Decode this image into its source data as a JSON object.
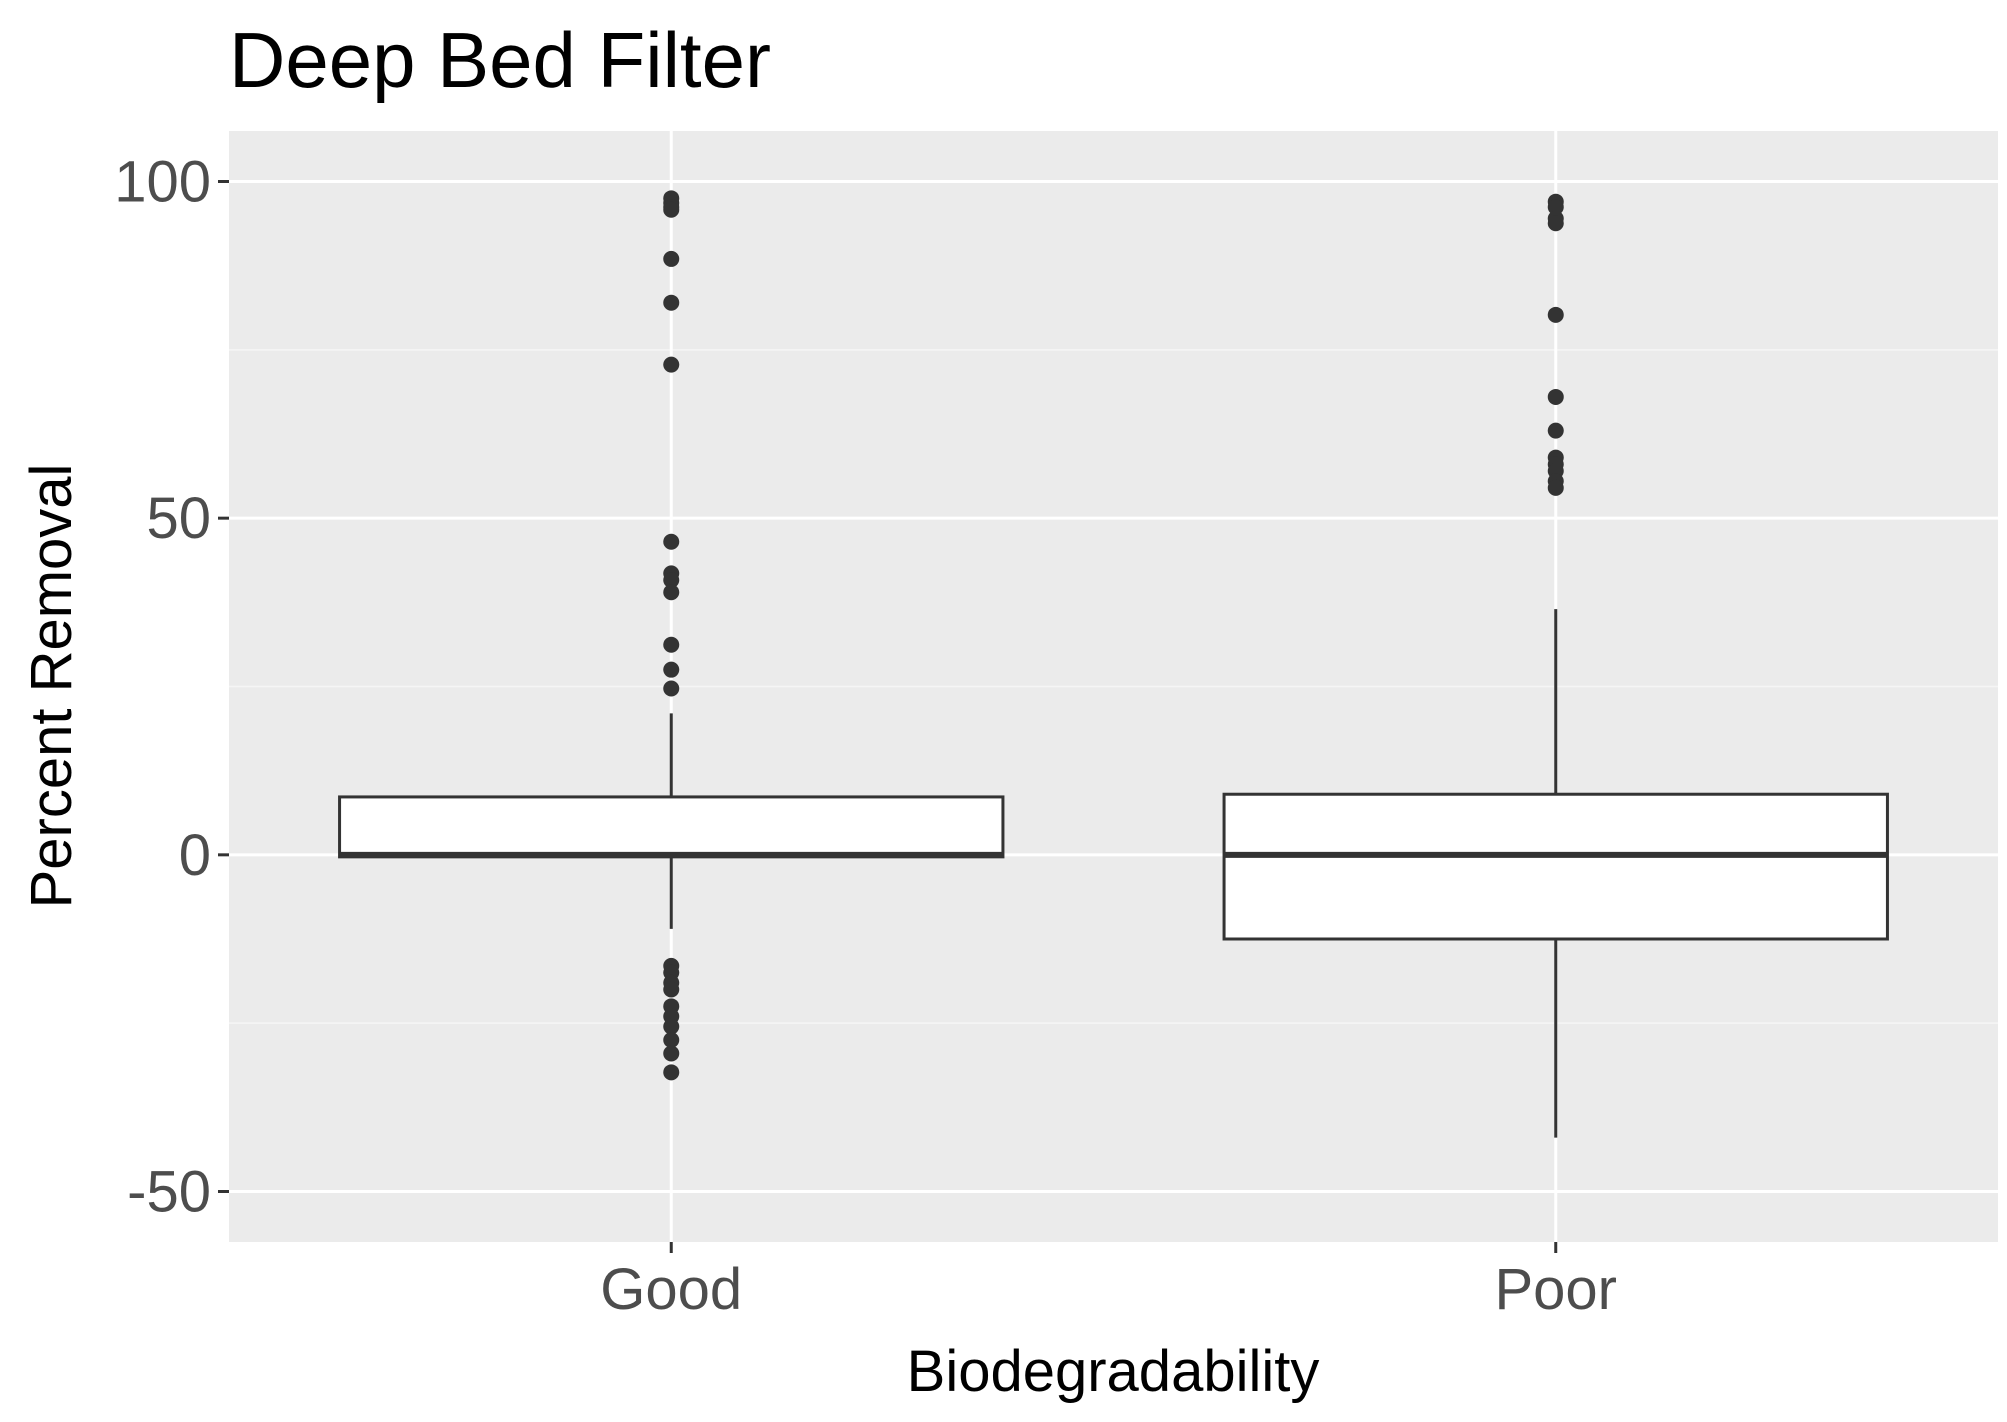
{
  "chart_data": {
    "type": "box",
    "title": "Deep Bed Filter",
    "xlabel": "Biodegradability",
    "ylabel": "Percent Removal",
    "categories": [
      "Good",
      "Poor"
    ],
    "ylim": [
      -57.5,
      107.5
    ],
    "yticks": [
      -50,
      0,
      50,
      100
    ],
    "yticks_minor": [
      -25,
      25,
      75
    ],
    "grid": true,
    "legend": "none",
    "boxes": [
      {
        "category": "Good",
        "whisker_low": -11,
        "q1": -0.3,
        "median": 0,
        "q3": 8.6,
        "whisker_high": 21,
        "outliers": [
          97.5,
          96.8,
          96.2,
          95.8,
          88.5,
          82,
          72.8,
          46.5,
          41.8,
          40.8,
          39,
          31.2,
          27.5,
          24.7,
          -16.5,
          -17.5,
          -19,
          -20,
          -22.5,
          -24,
          -25.5,
          -27.5,
          -29.5,
          -32.3
        ]
      },
      {
        "category": "Poor",
        "whisker_low": -42,
        "q1": -12.5,
        "median": 0,
        "q3": 9,
        "whisker_high": 36.5,
        "outliers": [
          97,
          96.2,
          94.5,
          93.8,
          80.2,
          68,
          63,
          59,
          58,
          57,
          55.5,
          54.5
        ]
      }
    ]
  },
  "colors": {
    "panel_background": "#ebebeb",
    "grid_major": "#ffffff",
    "grid_minor": "#f5f5f5",
    "box_fill": "#ffffff",
    "box_line": "#333333",
    "tick_text": "#4d4d4d",
    "tick_mark": "#333333",
    "title_text": "#000000"
  }
}
